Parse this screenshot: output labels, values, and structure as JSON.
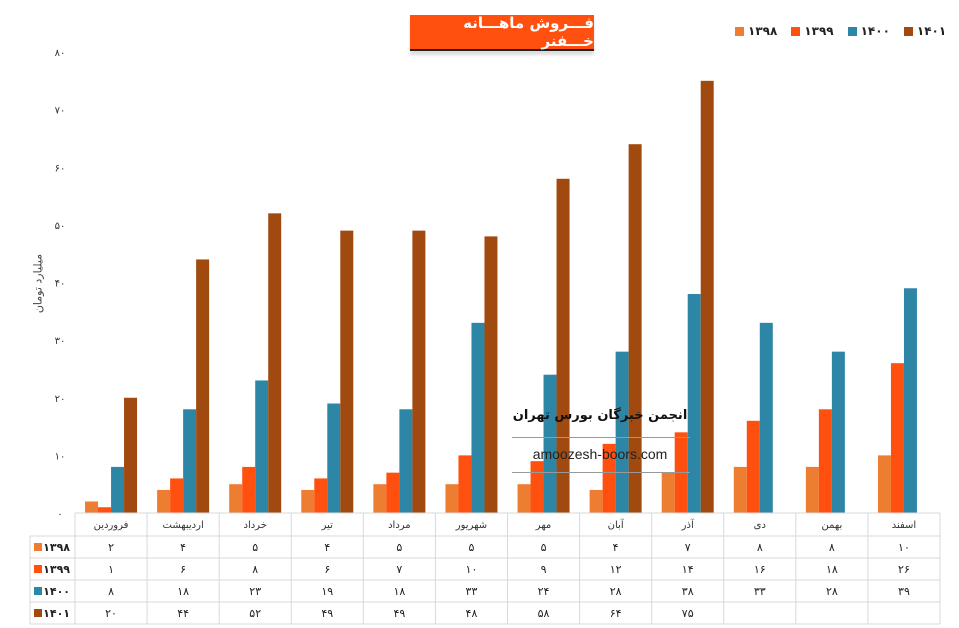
{
  "chart_data": {
    "type": "bar",
    "title": "فـــروش ماهـــانه خـــفنر",
    "ylabel": "میلیارد تومان",
    "xlabel": "",
    "ylim": [
      0,
      80
    ],
    "y_ticks": [
      0,
      10,
      20,
      30,
      40,
      50,
      60,
      70,
      80
    ],
    "y_tick_labels": [
      "۰",
      "۱۰",
      "۲۰",
      "۳۰",
      "۴۰",
      "۵۰",
      "۶۰",
      "۷۰",
      "۸۰"
    ],
    "grid": false,
    "legend_position": "top-right",
    "categories": [
      "فروردین",
      "اردیبهشت",
      "خرداد",
      "تیر",
      "مرداد",
      "شهریور",
      "مهر",
      "آبان",
      "آذر",
      "دی",
      "بهمن",
      "اسفند"
    ],
    "series": [
      {
        "name": "۱۳۹۸",
        "color": "#ED7D31",
        "values": [
          2,
          4,
          5,
          4,
          5,
          5,
          5,
          4,
          7,
          8,
          8,
          10
        ]
      },
      {
        "name": "۱۳۹۹",
        "color": "#FF5010",
        "values": [
          1,
          6,
          8,
          6,
          7,
          10,
          9,
          12,
          14,
          16,
          18,
          26
        ]
      },
      {
        "name": "۱۴۰۰",
        "color": "#2E86A6",
        "values": [
          8,
          18,
          23,
          19,
          18,
          33,
          24,
          28,
          38,
          33,
          28,
          39
        ]
      },
      {
        "name": "۱۴۰۱",
        "color": "#A04A10",
        "values": [
          20,
          44,
          52,
          49,
          49,
          48,
          58,
          64,
          75,
          null,
          null,
          null
        ]
      }
    ],
    "data_table": true
  },
  "header": {
    "title": "فـــروش ماهـــانه خـــفنر"
  },
  "watermark": {
    "title": "انجمن خبرگان بورس تهران",
    "url": "amoozesh-boors.com"
  }
}
